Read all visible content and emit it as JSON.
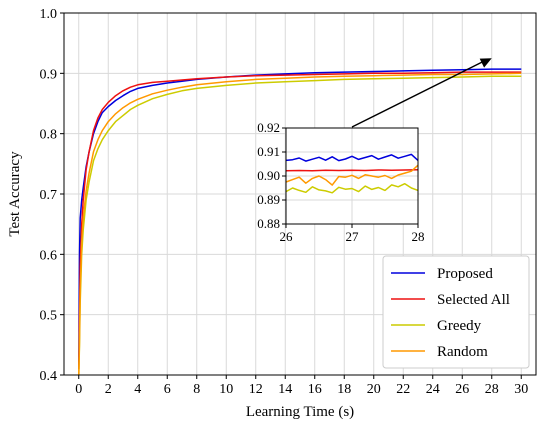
{
  "chart_data": {
    "type": "line",
    "title": "",
    "xlabel": "Learning Time (s)",
    "ylabel": "Test Accuracy",
    "xlim": [
      -1,
      31
    ],
    "ylim": [
      0.4,
      1.0
    ],
    "xticks": [
      "0",
      "2",
      "4",
      "6",
      "8",
      "10",
      "12",
      "14",
      "16",
      "18",
      "20",
      "22",
      "24",
      "26",
      "28",
      "30"
    ],
    "yticks": [
      "0.4",
      "0.5",
      "0.6",
      "0.7",
      "0.8",
      "0.9",
      "1.0"
    ],
    "grid": true,
    "legend_position": "lower-right",
    "series": [
      {
        "name": "Proposed",
        "color": "#0000dd",
        "x": [
          0,
          0.05,
          0.1,
          0.2,
          0.3,
          0.5,
          0.7,
          1.0,
          1.3,
          1.6,
          2.0,
          2.5,
          3.0,
          3.5,
          4.0,
          5.0,
          6.0,
          7.0,
          8.0,
          10.0,
          12.0,
          14.0,
          16.0,
          18.0,
          20.0,
          22.0,
          24.0,
          26.0,
          28.0,
          30.0
        ],
        "y": [
          0.41,
          0.6,
          0.66,
          0.69,
          0.71,
          0.745,
          0.77,
          0.8,
          0.82,
          0.835,
          0.845,
          0.855,
          0.863,
          0.87,
          0.875,
          0.88,
          0.884,
          0.887,
          0.89,
          0.894,
          0.897,
          0.899,
          0.901,
          0.902,
          0.903,
          0.904,
          0.905,
          0.906,
          0.907,
          0.907
        ]
      },
      {
        "name": "Selected All",
        "color": "#ee1111",
        "x": [
          0,
          0.05,
          0.1,
          0.2,
          0.3,
          0.5,
          0.7,
          1.0,
          1.3,
          1.6,
          2.0,
          2.5,
          3.0,
          3.5,
          4.0,
          5.0,
          6.0,
          7.0,
          8.0,
          10.0,
          12.0,
          14.0,
          16.0,
          18.0,
          20.0,
          22.0,
          24.0,
          26.0,
          28.0,
          30.0
        ],
        "y": [
          0.41,
          0.5,
          0.58,
          0.65,
          0.69,
          0.74,
          0.77,
          0.805,
          0.826,
          0.84,
          0.852,
          0.863,
          0.871,
          0.877,
          0.881,
          0.885,
          0.887,
          0.889,
          0.891,
          0.894,
          0.896,
          0.897,
          0.898,
          0.899,
          0.9,
          0.9,
          0.901,
          0.902,
          0.902,
          0.902
        ]
      },
      {
        "name": "Greedy",
        "color": "#cccc00",
        "x": [
          0,
          0.05,
          0.1,
          0.2,
          0.3,
          0.5,
          0.7,
          1.0,
          1.3,
          1.6,
          2.0,
          2.5,
          3.0,
          3.5,
          4.0,
          5.0,
          6.0,
          7.0,
          8.0,
          10.0,
          12.0,
          14.0,
          16.0,
          18.0,
          20.0,
          22.0,
          24.0,
          26.0,
          28.0,
          30.0
        ],
        "y": [
          0.4,
          0.45,
          0.52,
          0.6,
          0.64,
          0.69,
          0.72,
          0.755,
          0.775,
          0.79,
          0.805,
          0.82,
          0.83,
          0.84,
          0.847,
          0.858,
          0.865,
          0.871,
          0.875,
          0.88,
          0.884,
          0.886,
          0.888,
          0.89,
          0.891,
          0.892,
          0.893,
          0.894,
          0.895,
          0.895
        ]
      },
      {
        "name": "Random",
        "color": "#ff9900",
        "x": [
          0,
          0.05,
          0.1,
          0.2,
          0.3,
          0.5,
          0.7,
          1.0,
          1.3,
          1.6,
          2.0,
          2.5,
          3.0,
          3.5,
          4.0,
          5.0,
          6.0,
          7.0,
          8.0,
          10.0,
          12.0,
          14.0,
          16.0,
          18.0,
          20.0,
          22.0,
          24.0,
          26.0,
          28.0,
          30.0
        ],
        "y": [
          0.4,
          0.46,
          0.54,
          0.62,
          0.66,
          0.705,
          0.735,
          0.77,
          0.79,
          0.805,
          0.82,
          0.833,
          0.843,
          0.851,
          0.857,
          0.866,
          0.872,
          0.877,
          0.881,
          0.886,
          0.89,
          0.892,
          0.894,
          0.895,
          0.896,
          0.897,
          0.898,
          0.898,
          0.899,
          0.9
        ]
      }
    ],
    "inset": {
      "xlim": [
        26,
        28
      ],
      "ylim": [
        0.88,
        0.92
      ],
      "xticks": [
        "26",
        "27",
        "28"
      ],
      "yticks": [
        "0.88",
        "0.89",
        "0.90",
        "0.91",
        "0.92"
      ],
      "grid": true,
      "series": [
        {
          "name": "Proposed",
          "color": "#0000dd",
          "x": [
            26.0,
            26.1,
            26.2,
            26.3,
            26.4,
            26.5,
            26.6,
            26.7,
            26.8,
            26.9,
            27.0,
            27.1,
            27.2,
            27.3,
            27.4,
            27.5,
            27.6,
            27.7,
            27.8,
            27.9,
            28.0
          ],
          "y": [
            0.9065,
            0.9068,
            0.9075,
            0.9062,
            0.907,
            0.9078,
            0.9066,
            0.908,
            0.9064,
            0.9071,
            0.9082,
            0.9069,
            0.9077,
            0.9085,
            0.907,
            0.9079,
            0.9088,
            0.9074,
            0.9082,
            0.909,
            0.9065
          ]
        },
        {
          "name": "Selected All",
          "color": "#ee1111",
          "x": [
            26.0,
            26.2,
            26.4,
            26.6,
            26.8,
            27.0,
            27.2,
            27.4,
            27.6,
            27.8,
            28.0
          ],
          "y": [
            0.9022,
            0.9023,
            0.9022,
            0.9024,
            0.9023,
            0.9024,
            0.9023,
            0.9025,
            0.9024,
            0.9025,
            0.9026
          ]
        },
        {
          "name": "Greedy",
          "color": "#cccc00",
          "x": [
            26.0,
            26.1,
            26.2,
            26.3,
            26.4,
            26.5,
            26.6,
            26.7,
            26.8,
            26.9,
            27.0,
            27.1,
            27.2,
            27.3,
            27.4,
            27.5,
            27.6,
            27.7,
            27.8,
            27.9,
            28.0
          ],
          "y": [
            0.8935,
            0.895,
            0.894,
            0.8932,
            0.8955,
            0.8942,
            0.8938,
            0.893,
            0.8953,
            0.8945,
            0.8948,
            0.8935,
            0.8958,
            0.8944,
            0.8952,
            0.894,
            0.8963,
            0.8955,
            0.8968,
            0.895,
            0.894
          ]
        },
        {
          "name": "Random",
          "color": "#ff9900",
          "x": [
            26.0,
            26.1,
            26.2,
            26.3,
            26.4,
            26.5,
            26.6,
            26.7,
            26.8,
            26.9,
            27.0,
            27.1,
            27.2,
            27.3,
            27.4,
            27.5,
            27.6,
            27.7,
            27.8,
            27.9,
            28.0
          ],
          "y": [
            0.8975,
            0.8985,
            0.8995,
            0.897,
            0.899,
            0.9,
            0.8985,
            0.8962,
            0.8998,
            0.8995,
            0.9003,
            0.899,
            0.9005,
            0.9,
            0.8995,
            0.9002,
            0.899,
            0.9004,
            0.9012,
            0.902,
            0.9045
          ]
        }
      ]
    }
  }
}
